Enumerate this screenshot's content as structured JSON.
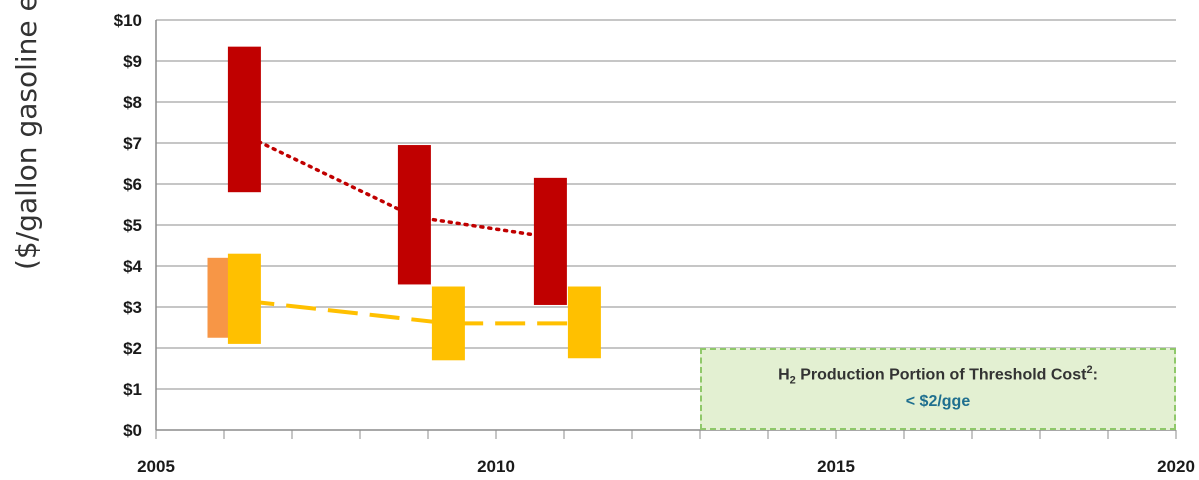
{
  "chart_data": {
    "type": "floating-bar",
    "ylabel": "($/gallon gasoline e",
    "ylim": [
      0,
      10
    ],
    "yticks": [
      "$0",
      "$1",
      "$2",
      "$3",
      "$4",
      "$5",
      "$6",
      "$7",
      "$8",
      "$9",
      "$10"
    ],
    "xlim": [
      2005,
      2020
    ],
    "xticks": [
      "2005",
      "2010",
      "2015",
      "2020"
    ],
    "grid": true,
    "bars": [
      {
        "x": 2006.0,
        "low": 2.25,
        "high": 4.2,
        "color": "#f79646"
      },
      {
        "x": 2006.3,
        "low": 5.8,
        "high": 9.35,
        "color": "#c00000"
      },
      {
        "x": 2006.3,
        "low": 2.1,
        "high": 4.3,
        "color": "#ffc000"
      },
      {
        "x": 2008.8,
        "low": 3.55,
        "high": 6.95,
        "color": "#c00000"
      },
      {
        "x": 2009.3,
        "low": 1.7,
        "high": 3.5,
        "color": "#ffc000"
      },
      {
        "x": 2010.8,
        "low": 3.05,
        "high": 6.15,
        "color": "#c00000"
      },
      {
        "x": 2011.3,
        "low": 1.75,
        "high": 3.5,
        "color": "#ffc000"
      }
    ],
    "trend_lines": [
      {
        "style": "dotted",
        "color": "#c00000",
        "x": [
          2006.3,
          2008.8,
          2010.8
        ],
        "y": [
          7.2,
          5.2,
          4.7
        ]
      },
      {
        "style": "dashed",
        "color": "#ffc000",
        "x": [
          2006.3,
          2009.3,
          2011.3
        ],
        "y": [
          3.15,
          2.6,
          2.6
        ]
      }
    ]
  },
  "annotation": {
    "line1_prefix": "H",
    "line1_sub": "2",
    "line1_mid": " Production Portion of Threshold Cost",
    "line1_sup": "2",
    "line1_end": ":",
    "line2": "< $2/gge"
  }
}
